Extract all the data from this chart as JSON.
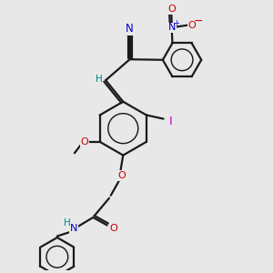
{
  "bg": "#e8e8e8",
  "bond_color": "#1a1a1a",
  "N_color": "#0000cc",
  "O_color": "#cc0000",
  "I_color": "#cc00cc",
  "H_color": "#008888",
  "figsize": [
    3.0,
    3.0
  ],
  "dpi": 100,
  "xlim": [
    0,
    10
  ],
  "ylim": [
    0,
    10
  ],
  "lw": 1.6
}
